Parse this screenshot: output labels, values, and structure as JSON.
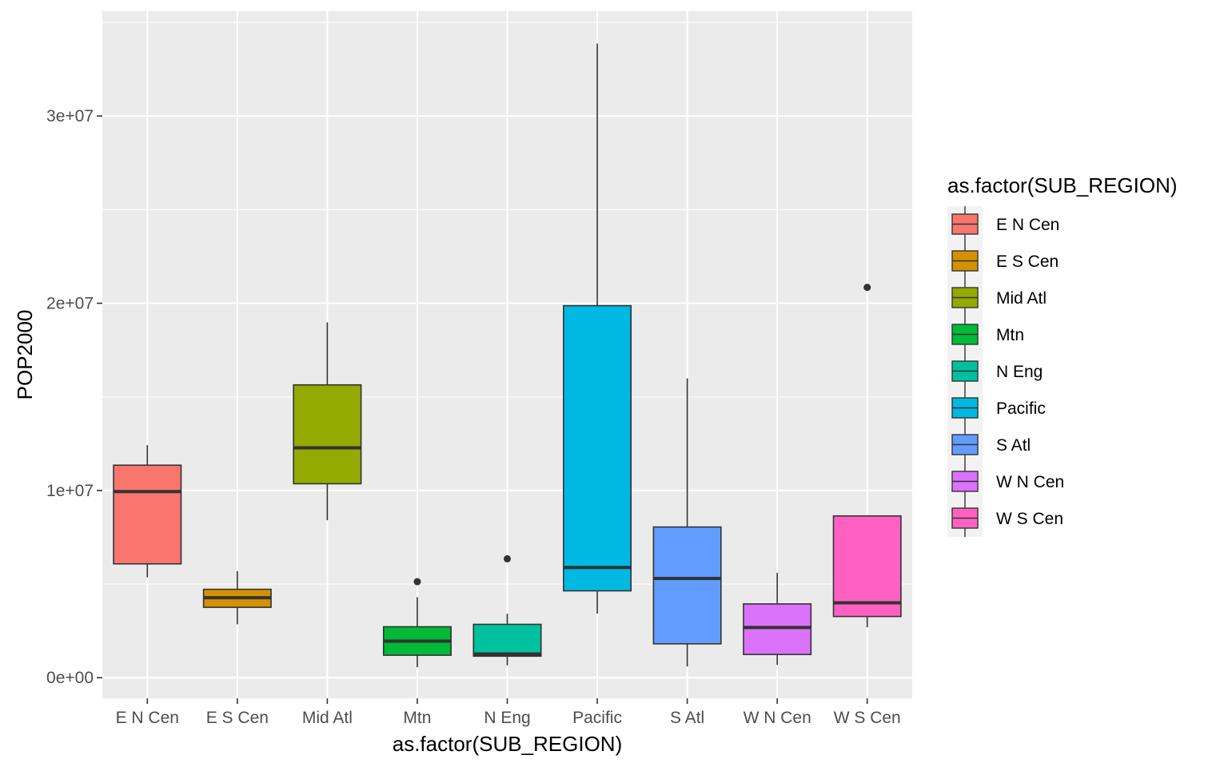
{
  "chart_data": {
    "type": "boxplot",
    "xlabel": "as.factor(SUB_REGION)",
    "ylabel": "POP2000",
    "ylim": [
      -1100000,
      35600000
    ],
    "yticks": [
      0,
      10000000,
      20000000,
      30000000
    ],
    "ytick_labels": [
      "0e+00",
      "1e+07",
      "2e+07",
      "3e+07"
    ],
    "grid": true,
    "legend_position": "right",
    "legend_title": "as.factor(SUB_REGION)",
    "categories": [
      "E N Cen",
      "E S Cen",
      "Mid Atl",
      "Mtn",
      "N Eng",
      "Pacific",
      "S Atl",
      "W N Cen",
      "W S Cen"
    ],
    "colors": [
      "#F8766D",
      "#D39200",
      "#93AA00",
      "#00BA38",
      "#00C19F",
      "#00B9E3",
      "#619CFF",
      "#DB72FB",
      "#FF61C3"
    ],
    "boxes": [
      {
        "category": "E N Cen",
        "whisker_low": 5360000,
        "q1": 6080000,
        "median": 9940000,
        "q3": 11350000,
        "whisker_high": 12420000,
        "outliers": []
      },
      {
        "category": "E S Cen",
        "whisker_low": 2850000,
        "q1": 3760000,
        "median": 4270000,
        "q3": 4720000,
        "whisker_high": 5690000,
        "outliers": []
      },
      {
        "category": "Mid Atl",
        "whisker_low": 8410000,
        "q1": 10360000,
        "median": 12280000,
        "q3": 15640000,
        "whisker_high": 18980000,
        "outliers": []
      },
      {
        "category": "Mtn",
        "whisker_low": 560000,
        "q1": 1200000,
        "median": 1950000,
        "q3": 2720000,
        "whisker_high": 4300000,
        "outliers": [
          5130000
        ]
      },
      {
        "category": "N Eng",
        "whisker_low": 660000,
        "q1": 1150000,
        "median": 1270000,
        "q3": 2850000,
        "whisker_high": 3410000,
        "outliers": [
          6350000
        ]
      },
      {
        "category": "Pacific",
        "whisker_low": 3420000,
        "q1": 4640000,
        "median": 5890000,
        "q3": 19870000,
        "whisker_high": 33870000,
        "outliers": []
      },
      {
        "category": "S Atl",
        "whisker_low": 600000,
        "q1": 1810000,
        "median": 5300000,
        "q3": 8050000,
        "whisker_high": 15980000,
        "outliers": []
      },
      {
        "category": "W N Cen",
        "whisker_low": 680000,
        "q1": 1240000,
        "median": 2680000,
        "q3": 3940000,
        "whisker_high": 5600000,
        "outliers": []
      },
      {
        "category": "W S Cen",
        "whisker_low": 2690000,
        "q1": 3270000,
        "median": 4000000,
        "q3": 8640000,
        "whisker_high": 8640000,
        "outliers": [
          20850000
        ]
      }
    ]
  }
}
